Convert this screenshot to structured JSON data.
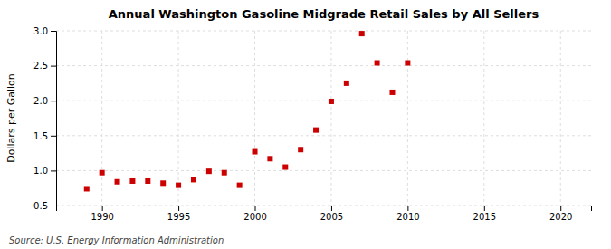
{
  "chart_data": {
    "type": "scatter",
    "title": "Annual Washington Gasoline Midgrade Retail Sales by All Sellers",
    "ylabel": "Dollars per Gallon",
    "annotations": [
      "Source: U.S. Energy Information Administration"
    ],
    "x": [
      1989,
      1990,
      1991,
      1992,
      1993,
      1994,
      1995,
      1996,
      1997,
      1998,
      1999,
      2000,
      2001,
      2002,
      2003,
      2004,
      2005,
      2006,
      2007,
      2008,
      2009,
      2010
    ],
    "values": [
      0.74,
      0.97,
      0.84,
      0.85,
      0.85,
      0.82,
      0.79,
      0.87,
      0.99,
      0.97,
      0.79,
      1.27,
      1.17,
      1.05,
      1.3,
      1.58,
      1.99,
      2.25,
      2.96,
      2.54,
      2.12,
      2.54
    ],
    "color": "#cc0000",
    "marker": "square",
    "xlim": [
      1987,
      2022
    ],
    "ylim": [
      0.5,
      3.0
    ],
    "xticks": [
      1990,
      1995,
      2000,
      2005,
      2010,
      2015,
      2020
    ],
    "yticks": [
      0.5,
      {
        "value": 1.0,
        "label": "1.0"
      },
      1.5,
      {
        "value": 2.0,
        "label": "2.0"
      },
      2.5,
      {
        "value": 3.0,
        "label": "3.0"
      }
    ],
    "grid": true
  }
}
